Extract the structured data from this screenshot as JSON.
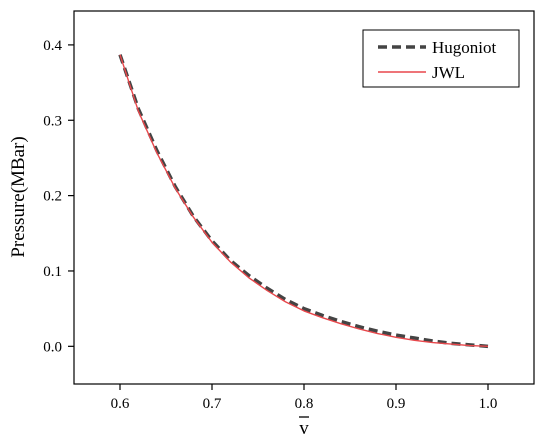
{
  "chart_data": {
    "type": "line",
    "xlabel": "v",
    "ylabel": "Pressure(MBar)",
    "xlim": [
      0.55,
      1.05
    ],
    "ylim": [
      -0.05,
      0.445
    ],
    "xticks": [
      0.6,
      0.7,
      0.8,
      0.9,
      1.0
    ],
    "xtick_labels": [
      "0.6",
      "0.7",
      "0.8",
      "0.9",
      "1.0"
    ],
    "yticks": [
      0.0,
      0.1,
      0.2,
      0.3,
      0.4
    ],
    "ytick_labels": [
      "0.0",
      "0.1",
      "0.2",
      "0.3",
      "0.4"
    ],
    "grid": false,
    "legend_position": "top-right",
    "series": [
      {
        "name": "Hugoniot",
        "style": "dashed",
        "color": "#444444",
        "x": [
          0.6,
          0.62,
          0.64,
          0.66,
          0.68,
          0.7,
          0.72,
          0.74,
          0.76,
          0.78,
          0.8,
          0.82,
          0.84,
          0.86,
          0.88,
          0.9,
          0.92,
          0.94,
          0.96,
          0.98,
          1.0
        ],
        "y": [
          0.387,
          0.315,
          0.26,
          0.212,
          0.172,
          0.14,
          0.114,
          0.094,
          0.077,
          0.062,
          0.05,
          0.041,
          0.033,
          0.026,
          0.02,
          0.015,
          0.011,
          0.007,
          0.004,
          0.002,
          0.0
        ]
      },
      {
        "name": "JWL",
        "style": "solid",
        "color": "#e8474b",
        "x": [
          0.6,
          0.62,
          0.64,
          0.66,
          0.68,
          0.7,
          0.72,
          0.74,
          0.76,
          0.78,
          0.8,
          0.82,
          0.84,
          0.86,
          0.88,
          0.9,
          0.92,
          0.94,
          0.96,
          0.98,
          1.0
        ],
        "y": [
          0.387,
          0.312,
          0.257,
          0.21,
          0.171,
          0.138,
          0.112,
          0.091,
          0.074,
          0.059,
          0.047,
          0.038,
          0.03,
          0.023,
          0.017,
          0.012,
          0.008,
          0.005,
          0.003,
          0.001,
          0.0
        ]
      }
    ]
  }
}
